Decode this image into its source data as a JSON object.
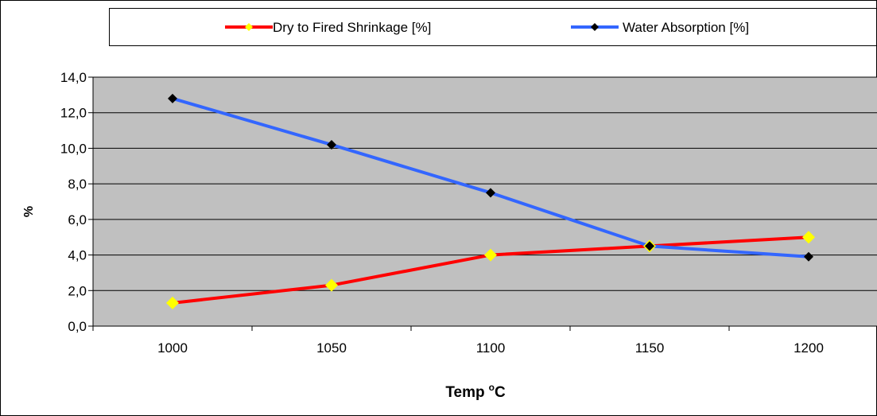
{
  "chart_data": {
    "type": "line",
    "categories": [
      "1000",
      "1050",
      "1100",
      "1150",
      "1200"
    ],
    "series": [
      {
        "name": "Dry to Fired Shrinkage [%]",
        "values": [
          1.3,
          2.3,
          4.0,
          4.5,
          5.0
        ],
        "line_color": "#ff0000",
        "marker_color": "#ffff00",
        "marker": "diamond"
      },
      {
        "name": "Water Absorption [%]",
        "values": [
          12.8,
          10.2,
          7.5,
          4.5,
          3.9
        ],
        "line_color": "#3366ff",
        "marker_color": "#000000",
        "marker": "diamond"
      }
    ],
    "ylim": [
      0,
      14
    ],
    "yticks": [
      "0,0",
      "2,0",
      "4,0",
      "6,0",
      "8,0",
      "10,0",
      "12,0",
      "14,0"
    ],
    "xlabel": "Temp",
    "xlabel_sup": "o",
    "xlabel_unit": "C",
    "ylabel": "%",
    "grid": true,
    "plot_background": "#c0c0c0",
    "legend_position": "top"
  }
}
